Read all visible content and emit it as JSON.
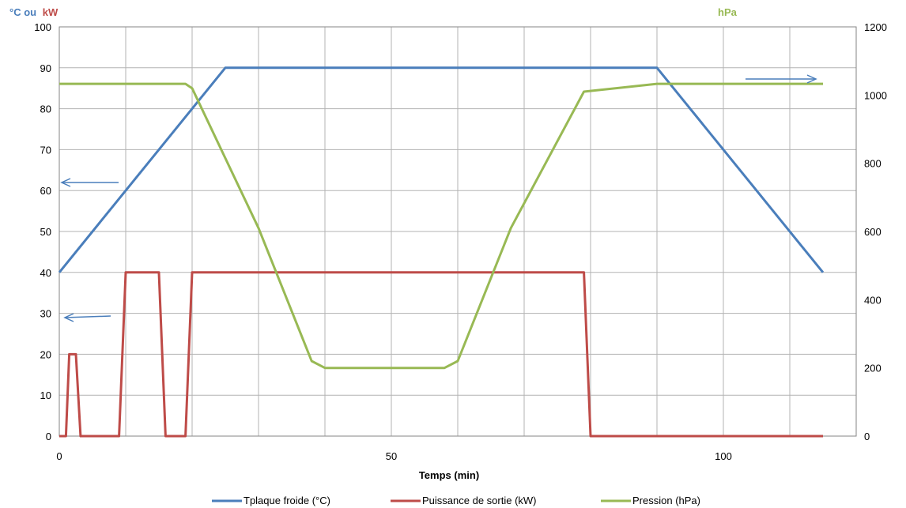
{
  "chart_data": {
    "type": "line",
    "xlabel": "Temps (min)",
    "y_left_label_part1": "°C ou",
    "y_left_label_part2": "kW",
    "y_right_label": "hPa",
    "xlim": [
      0,
      120
    ],
    "ylim_left": [
      0,
      100
    ],
    "ylim_right": [
      0,
      1200
    ],
    "x_ticks": [
      0,
      50,
      100
    ],
    "y_left_ticks": [
      0,
      10,
      20,
      30,
      40,
      50,
      60,
      70,
      80,
      90,
      100
    ],
    "y_right_ticks": [
      0,
      200,
      400,
      600,
      800,
      1000,
      1200
    ],
    "grid": "vertical every 10 min, horizontal every 10 units (left axis)",
    "legend_position": "bottom",
    "series": [
      {
        "name": "Tplaque froide (°C)",
        "color": "#4a7ebb",
        "axis": "left",
        "x": [
          0,
          25,
          90,
          115
        ],
        "y": [
          40,
          90,
          90,
          40
        ]
      },
      {
        "name": "Puissance de sortie (kW)",
        "color": "#be4b48",
        "axis": "left",
        "x": [
          0,
          1,
          1.5,
          2.5,
          3.2,
          9,
          10,
          15,
          16,
          19,
          20,
          79,
          80,
          115
        ],
        "y": [
          0,
          0,
          20,
          20,
          0,
          0,
          40,
          40,
          0,
          0,
          40,
          40,
          0,
          0
        ]
      },
      {
        "name": "Pression (hPa)",
        "color": "#98b954",
        "axis": "right",
        "x": [
          0,
          19,
          20,
          30,
          38,
          40,
          58,
          60,
          68,
          79,
          90,
          115
        ],
        "y": [
          1033,
          1033,
          1020,
          610,
          220,
          200,
          200,
          220,
          610,
          1010,
          1033,
          1033
        ]
      }
    ],
    "annotations": [
      {
        "type": "arrow",
        "direction": "left",
        "points_to": "left axis"
      },
      {
        "type": "arrow",
        "direction": "left",
        "points_to": "left axis"
      },
      {
        "type": "arrow",
        "direction": "right",
        "points_to": "right axis"
      }
    ]
  }
}
